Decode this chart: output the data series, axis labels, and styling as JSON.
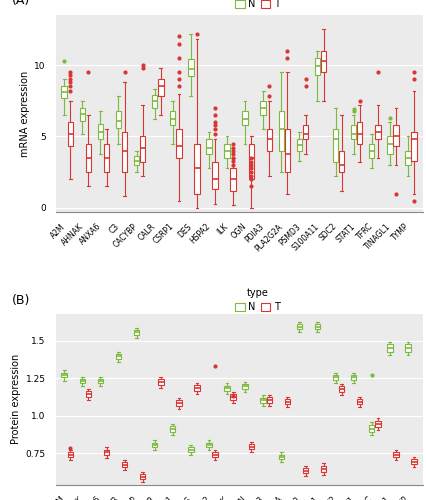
{
  "genes": [
    "A2M",
    "AHNAK",
    "ANXA6",
    "C3",
    "CACYBP",
    "CALR",
    "CSRP1",
    "DES",
    "HSPA2",
    "ILK",
    "OGN",
    "PDIA3",
    "PLA2G2A",
    "PSMD3",
    "S100A11",
    "SDC2",
    "STAT1",
    "TFRC",
    "TINAGL1",
    "TYMP"
  ],
  "panel_A_label": "(A)",
  "panel_B_label": "(B)",
  "legend_title": "type",
  "legend_N": "N",
  "legend_T": "T",
  "ylabel_A": "mRNA expression",
  "ylabel_B": "Protein expression",
  "color_N": "#7cba3d",
  "color_T": "#d93535",
  "fill_N": "#ffffff",
  "fill_T": "#ffffff",
  "bg_color": "#ebebeb",
  "grid_color": "#ffffff",
  "ylim_A": [
    -0.3,
    13.5
  ],
  "ylim_B": [
    0.54,
    1.68
  ],
  "yticks_A": [
    0,
    5,
    10
  ],
  "yticks_B": [
    0.75,
    1.0,
    1.25,
    1.5
  ],
  "mRNA_N": {
    "A2M": {
      "q1": 7.7,
      "med": 8.1,
      "q3": 8.5,
      "whislo": 6.5,
      "whishi": 9.0,
      "fliers": [
        10.3
      ]
    },
    "AHNAK": {
      "q1": 6.1,
      "med": 6.6,
      "q3": 7.0,
      "whislo": 5.2,
      "whishi": 7.5,
      "fliers": []
    },
    "ANXA6": {
      "q1": 4.8,
      "med": 5.3,
      "q3": 5.9,
      "whislo": 3.8,
      "whishi": 6.8,
      "fliers": []
    },
    "C3": {
      "q1": 5.6,
      "med": 6.1,
      "q3": 6.8,
      "whislo": 4.5,
      "whishi": 7.8,
      "fliers": []
    },
    "CACYBP": {
      "q1": 3.0,
      "med": 3.3,
      "q3": 3.6,
      "whislo": 2.5,
      "whishi": 4.0,
      "fliers": []
    },
    "CALR": {
      "q1": 7.0,
      "med": 7.5,
      "q3": 7.9,
      "whislo": 6.2,
      "whishi": 8.3,
      "fliers": []
    },
    "CSRP1": {
      "q1": 5.8,
      "med": 6.2,
      "q3": 6.8,
      "whislo": 4.5,
      "whishi": 7.5,
      "fliers": []
    },
    "DES": {
      "q1": 9.2,
      "med": 9.7,
      "q3": 10.4,
      "whislo": 7.8,
      "whishi": 12.2,
      "fliers": []
    },
    "HSPA2": {
      "q1": 3.8,
      "med": 4.2,
      "q3": 4.8,
      "whislo": 2.8,
      "whishi": 5.3,
      "fliers": []
    },
    "ILK": {
      "q1": 3.5,
      "med": 4.0,
      "q3": 4.5,
      "whislo": 2.8,
      "whishi": 5.0,
      "fliers": []
    },
    "OGN": {
      "q1": 5.8,
      "med": 6.2,
      "q3": 6.8,
      "whislo": 4.5,
      "whishi": 7.5,
      "fliers": []
    },
    "PDIA3": {
      "q1": 6.5,
      "med": 7.0,
      "q3": 7.5,
      "whislo": 5.5,
      "whishi": 8.2,
      "fliers": []
    },
    "PLA2G2A": {
      "q1": 4.0,
      "med": 5.5,
      "q3": 6.8,
      "whislo": 2.5,
      "whishi": 9.5,
      "fliers": []
    },
    "PSMD3": {
      "q1": 4.0,
      "med": 4.4,
      "q3": 4.8,
      "whislo": 3.3,
      "whishi": 5.3,
      "fliers": []
    },
    "S100A11": {
      "q1": 9.3,
      "med": 9.9,
      "q3": 10.5,
      "whislo": 7.5,
      "whishi": 11.0,
      "fliers": []
    },
    "SDC2": {
      "q1": 3.2,
      "med": 4.8,
      "q3": 5.5,
      "whislo": 2.2,
      "whishi": 7.0,
      "fliers": []
    },
    "STAT1": {
      "q1": 4.8,
      "med": 5.2,
      "q3": 5.8,
      "whislo": 3.8,
      "whishi": 6.5,
      "fliers": [
        6.8,
        6.9
      ]
    },
    "TFRC": {
      "q1": 3.5,
      "med": 4.0,
      "q3": 4.5,
      "whislo": 2.8,
      "whishi": 5.2,
      "fliers": []
    },
    "TINAGL1": {
      "q1": 3.8,
      "med": 4.5,
      "q3": 5.0,
      "whislo": 3.0,
      "whishi": 6.0,
      "fliers": [
        6.3
      ]
    },
    "TYMP": {
      "q1": 3.0,
      "med": 3.5,
      "q3": 4.0,
      "whislo": 2.2,
      "whishi": 5.0,
      "fliers": []
    }
  },
  "mRNA_T": {
    "A2M": {
      "q1": 4.3,
      "med": 5.2,
      "q3": 6.0,
      "whislo": 2.0,
      "whishi": 7.5,
      "fliers": [
        8.2,
        8.5,
        8.8,
        9.0,
        9.3,
        9.5
      ]
    },
    "AHNAK": {
      "q1": 2.5,
      "med": 3.5,
      "q3": 4.5,
      "whislo": 1.5,
      "whishi": 6.5,
      "fliers": [
        9.5
      ]
    },
    "ANXA6": {
      "q1": 2.5,
      "med": 3.5,
      "q3": 4.5,
      "whislo": 1.5,
      "whishi": 5.5,
      "fliers": []
    },
    "C3": {
      "q1": 2.5,
      "med": 4.0,
      "q3": 5.3,
      "whislo": 0.8,
      "whishi": 8.8,
      "fliers": [
        9.5
      ]
    },
    "CACYBP": {
      "q1": 3.2,
      "med": 4.2,
      "q3": 5.0,
      "whislo": 2.2,
      "whishi": 7.2,
      "fliers": [
        9.8,
        10.0
      ]
    },
    "CALR": {
      "q1": 7.8,
      "med": 8.5,
      "q3": 9.0,
      "whislo": 6.5,
      "whishi": 9.8,
      "fliers": []
    },
    "CSRP1": {
      "q1": 3.5,
      "med": 4.3,
      "q3": 5.5,
      "whislo": 0.5,
      "whishi": 8.0,
      "fliers": [
        8.5,
        9.0,
        9.5,
        10.5,
        11.5,
        12.0
      ]
    },
    "DES": {
      "q1": 1.0,
      "med": 2.8,
      "q3": 4.5,
      "whislo": 0.0,
      "whishi": 11.8,
      "fliers": [
        12.2
      ]
    },
    "HSPA2": {
      "q1": 1.3,
      "med": 2.0,
      "q3": 3.2,
      "whislo": 0.3,
      "whishi": 4.8,
      "fliers": [
        5.2,
        5.5,
        5.8,
        6.0,
        6.5,
        7.0
      ]
    },
    "ILK": {
      "q1": 1.2,
      "med": 2.0,
      "q3": 2.8,
      "whislo": 0.2,
      "whishi": 3.5,
      "fliers": [
        3.0,
        3.5,
        3.8,
        4.0,
        4.2,
        4.5,
        3.3
      ]
    },
    "OGN": {
      "q1": 2.0,
      "med": 3.5,
      "q3": 4.5,
      "whislo": 0.0,
      "whishi": 5.0,
      "fliers": [
        1.5,
        2.0,
        2.2,
        2.5,
        2.8,
        3.0,
        3.2,
        3.5
      ]
    },
    "PDIA3": {
      "q1": 4.0,
      "med": 4.8,
      "q3": 5.5,
      "whislo": 2.2,
      "whishi": 7.5,
      "fliers": [
        7.8,
        8.5
      ]
    },
    "PLA2G2A": {
      "q1": 2.5,
      "med": 3.8,
      "q3": 5.5,
      "whislo": 1.0,
      "whishi": 9.5,
      "fliers": [
        10.5,
        11.0
      ]
    },
    "PSMD3": {
      "q1": 4.8,
      "med": 5.2,
      "q3": 5.8,
      "whislo": 3.8,
      "whishi": 6.5,
      "fliers": [
        8.5,
        9.0
      ]
    },
    "S100A11": {
      "q1": 9.5,
      "med": 10.3,
      "q3": 11.0,
      "whislo": 7.5,
      "whishi": 12.5,
      "fliers": []
    },
    "SDC2": {
      "q1": 2.5,
      "med": 3.0,
      "q3": 4.0,
      "whislo": 1.2,
      "whishi": 6.5,
      "fliers": []
    },
    "STAT1": {
      "q1": 4.5,
      "med": 5.2,
      "q3": 6.0,
      "whislo": 3.2,
      "whishi": 7.2,
      "fliers": [
        7.5
      ]
    },
    "TFRC": {
      "q1": 4.8,
      "med": 5.3,
      "q3": 5.8,
      "whislo": 3.5,
      "whishi": 7.2,
      "fliers": [
        9.5
      ]
    },
    "TINAGL1": {
      "q1": 4.3,
      "med": 5.0,
      "q3": 5.8,
      "whislo": 3.0,
      "whishi": 7.0,
      "fliers": [
        1.0
      ]
    },
    "TYMP": {
      "q1": 3.3,
      "med": 4.8,
      "q3": 5.3,
      "whislo": 1.0,
      "whishi": 8.2,
      "fliers": [
        0.5,
        9.0,
        9.5
      ]
    }
  },
  "protein_N": {
    "A2M": {
      "q1": 1.255,
      "med": 1.27,
      "q3": 1.285,
      "whislo": 1.23,
      "whishi": 1.305,
      "fliers": []
    },
    "AHNAK": {
      "q1": 1.215,
      "med": 1.23,
      "q3": 1.245,
      "whislo": 1.195,
      "whishi": 1.26,
      "fliers": []
    },
    "ANXA6": {
      "q1": 1.215,
      "med": 1.23,
      "q3": 1.245,
      "whislo": 1.195,
      "whishi": 1.255,
      "fliers": []
    },
    "C3": {
      "q1": 1.375,
      "med": 1.395,
      "q3": 1.41,
      "whislo": 1.355,
      "whishi": 1.425,
      "fliers": []
    },
    "CACYBP": {
      "q1": 1.54,
      "med": 1.558,
      "q3": 1.572,
      "whislo": 1.52,
      "whishi": 1.585,
      "fliers": []
    },
    "CALR": {
      "q1": 0.79,
      "med": 0.808,
      "q3": 0.822,
      "whislo": 0.77,
      "whishi": 0.838,
      "fliers": []
    },
    "CSRP1": {
      "q1": 0.895,
      "med": 0.915,
      "q3": 0.93,
      "whislo": 0.875,
      "whishi": 0.945,
      "fliers": []
    },
    "DES": {
      "q1": 0.758,
      "med": 0.775,
      "q3": 0.792,
      "whislo": 0.738,
      "whishi": 0.808,
      "fliers": []
    },
    "HSPA2": {
      "q1": 0.79,
      "med": 0.808,
      "q3": 0.822,
      "whislo": 0.77,
      "whishi": 0.838,
      "fliers": []
    },
    "ILK": {
      "q1": 1.168,
      "med": 1.185,
      "q3": 1.2,
      "whislo": 1.148,
      "whishi": 1.216,
      "fliers": []
    },
    "OGN": {
      "q1": 1.178,
      "med": 1.195,
      "q3": 1.21,
      "whislo": 1.158,
      "whishi": 1.226,
      "fliers": []
    },
    "PDIA3": {
      "q1": 1.088,
      "med": 1.105,
      "q3": 1.12,
      "whislo": 1.068,
      "whishi": 1.136,
      "fliers": []
    },
    "PLA2G2A": {
      "q1": 0.71,
      "med": 0.728,
      "q3": 0.742,
      "whislo": 0.69,
      "whishi": 0.758,
      "fliers": []
    },
    "PSMD3": {
      "q1": 1.575,
      "med": 1.592,
      "q3": 1.608,
      "whislo": 1.555,
      "whishi": 1.625,
      "fliers": []
    },
    "S100A11": {
      "q1": 1.575,
      "med": 1.592,
      "q3": 1.608,
      "whislo": 1.555,
      "whishi": 1.625,
      "fliers": []
    },
    "SDC2": {
      "q1": 1.238,
      "med": 1.255,
      "q3": 1.27,
      "whislo": 1.218,
      "whishi": 1.286,
      "fliers": []
    },
    "STAT1": {
      "q1": 1.238,
      "med": 1.255,
      "q3": 1.27,
      "whislo": 1.218,
      "whishi": 1.286,
      "fliers": []
    },
    "TFRC": {
      "q1": 0.895,
      "med": 0.915,
      "q3": 0.94,
      "whislo": 0.875,
      "whishi": 0.958,
      "fliers": [
        1.27
      ]
    },
    "TINAGL1": {
      "q1": 1.425,
      "med": 1.452,
      "q3": 1.475,
      "whislo": 1.405,
      "whishi": 1.492,
      "fliers": []
    },
    "TYMP": {
      "q1": 1.425,
      "med": 1.452,
      "q3": 1.475,
      "whislo": 1.405,
      "whishi": 1.492,
      "fliers": []
    }
  },
  "protein_T": {
    "A2M": {
      "q1": 0.725,
      "med": 0.742,
      "q3": 0.758,
      "whislo": 0.705,
      "whishi": 0.774,
      "fliers": [
        0.785
      ]
    },
    "AHNAK": {
      "q1": 1.128,
      "med": 1.145,
      "q3": 1.162,
      "whislo": 1.108,
      "whishi": 1.178,
      "fliers": []
    },
    "ANXA6": {
      "q1": 0.742,
      "med": 0.758,
      "q3": 0.774,
      "whislo": 0.722,
      "whishi": 0.79,
      "fliers": []
    },
    "C3": {
      "q1": 0.658,
      "med": 0.675,
      "q3": 0.692,
      "whislo": 0.638,
      "whishi": 0.708,
      "fliers": []
    },
    "CACYBP": {
      "q1": 0.578,
      "med": 0.595,
      "q3": 0.612,
      "whislo": 0.558,
      "whishi": 0.628,
      "fliers": []
    },
    "CALR": {
      "q1": 1.208,
      "med": 1.225,
      "q3": 1.242,
      "whislo": 1.188,
      "whishi": 1.258,
      "fliers": []
    },
    "CSRP1": {
      "q1": 1.068,
      "med": 1.085,
      "q3": 1.102,
      "whislo": 1.048,
      "whishi": 1.118,
      "fliers": []
    },
    "DES": {
      "q1": 1.168,
      "med": 1.185,
      "q3": 1.202,
      "whislo": 1.148,
      "whishi": 1.218,
      "fliers": []
    },
    "HSPA2": {
      "q1": 0.725,
      "med": 0.742,
      "q3": 0.758,
      "whislo": 0.705,
      "whishi": 0.774,
      "fliers": [
        1.33
      ]
    },
    "ILK": {
      "q1": 1.108,
      "med": 1.125,
      "q3": 1.142,
      "whislo": 1.088,
      "whishi": 1.158,
      "fliers": [
        1.13
      ]
    },
    "OGN": {
      "q1": 0.778,
      "med": 0.795,
      "q3": 0.812,
      "whislo": 0.758,
      "whishi": 0.828,
      "fliers": []
    },
    "PDIA3": {
      "q1": 1.088,
      "med": 1.105,
      "q3": 1.122,
      "whislo": 1.068,
      "whishi": 1.138,
      "fliers": []
    },
    "PLA2G2A": {
      "q1": 1.078,
      "med": 1.095,
      "q3": 1.112,
      "whislo": 1.058,
      "whishi": 1.128,
      "fliers": []
    },
    "PSMD3": {
      "q1": 0.618,
      "med": 0.635,
      "q3": 0.652,
      "whislo": 0.598,
      "whishi": 0.668,
      "fliers": []
    },
    "S100A11": {
      "q1": 0.628,
      "med": 0.648,
      "q3": 0.668,
      "whislo": 0.608,
      "whishi": 0.684,
      "fliers": []
    },
    "SDC2": {
      "q1": 1.158,
      "med": 1.175,
      "q3": 1.195,
      "whislo": 1.138,
      "whishi": 1.211,
      "fliers": []
    },
    "STAT1": {
      "q1": 1.078,
      "med": 1.095,
      "q3": 1.112,
      "whislo": 1.058,
      "whishi": 1.128,
      "fliers": []
    },
    "TFRC": {
      "q1": 0.928,
      "med": 0.948,
      "q3": 0.968,
      "whislo": 0.908,
      "whishi": 0.984,
      "fliers": []
    },
    "TINAGL1": {
      "q1": 0.725,
      "med": 0.742,
      "q3": 0.758,
      "whislo": 0.705,
      "whishi": 0.774,
      "fliers": []
    },
    "TYMP": {
      "q1": 0.678,
      "med": 0.695,
      "q3": 0.712,
      "whislo": 0.658,
      "whishi": 0.728,
      "fliers": []
    }
  }
}
